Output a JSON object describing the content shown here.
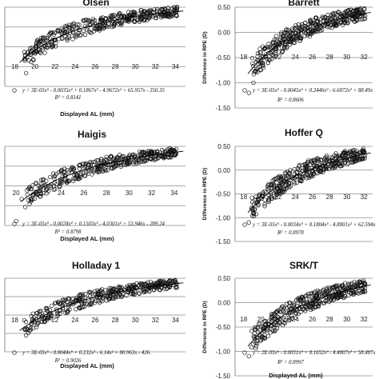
{
  "chart_data": [
    {
      "type": "scatter",
      "title": "Olsen",
      "xlabel": "Displayed AL (mm)",
      "ylabel": "",
      "xticks": [
        "18",
        "20",
        "22",
        "24",
        "26",
        "28",
        "30",
        "32",
        "34"
      ],
      "yticks": [],
      "xlim": [
        18,
        35
      ],
      "ylim": [
        -1.2,
        0.6
      ],
      "legend": "y = 3E-05x⁵ - 0.0035x⁴ + 0.1867x³ - 4.9672x² + 65.957x - 350.35",
      "r2": "R² = 0.8141",
      "trend": {
        "a": 0.5,
        "b": 0.28,
        "c": 3.6
      },
      "points": [
        [
          20,
          -0.9
        ],
        [
          20.5,
          -0.4
        ],
        [
          21,
          -0.2
        ],
        [
          22,
          -0.1
        ],
        [
          23,
          0.05
        ],
        [
          24,
          0.15
        ],
        [
          25,
          0.2
        ],
        [
          26,
          0.28
        ],
        [
          27,
          0.32
        ],
        [
          28,
          0.36
        ],
        [
          29,
          0.4
        ],
        [
          30,
          0.42
        ],
        [
          31,
          0.45
        ],
        [
          32,
          0.48
        ],
        [
          33,
          0.5
        ],
        [
          34,
          0.52
        ]
      ]
    },
    {
      "type": "scatter",
      "title": "Barrett",
      "xlabel": "",
      "ylabel": "Difference in RPE (D)",
      "xticks": [
        "18",
        "20",
        "22",
        "24",
        "26",
        "28",
        "30",
        "32"
      ],
      "yticks": [
        "0.50",
        "0.00",
        "-0.50",
        "-1.00",
        "-1.50"
      ],
      "xlim": [
        18,
        33
      ],
      "ylim": [
        -1.5,
        0.5
      ],
      "legend": "y = 3E-05x⁵ - 0.0045x⁴ + 0.2446x³ - 6.6072x² + 88.49x",
      "r2": "R² = 0.8606",
      "trend": {
        "a": 0.4,
        "b": 0.32,
        "c": 3.2
      },
      "points": [
        [
          19.5,
          -1.2
        ],
        [
          20,
          -1.0
        ],
        [
          20.5,
          -0.7
        ],
        [
          21,
          -0.5
        ],
        [
          22,
          -0.3
        ],
        [
          23,
          -0.1
        ],
        [
          24,
          0.0
        ],
        [
          25,
          0.1
        ],
        [
          26,
          0.15
        ],
        [
          27,
          0.2
        ],
        [
          28,
          0.25
        ],
        [
          29,
          0.28
        ],
        [
          30,
          0.32
        ],
        [
          31,
          0.35
        ],
        [
          32,
          0.38
        ]
      ]
    },
    {
      "type": "scatter",
      "title": "Haigis",
      "xlabel": "Displayed AL (mm)",
      "ylabel": "",
      "xticks": [
        "20",
        "22",
        "24",
        "26",
        "28",
        "30",
        "32",
        "34"
      ],
      "yticks": [],
      "xlim": [
        19,
        35
      ],
      "ylim": [
        -1.2,
        0.6
      ],
      "legend": "y = 3E-05x⁵ - 0.0028x⁴ + 0.1503x³ - 4.0301x² + 53.946x - 289.24",
      "r2": "R² = 0.8798",
      "trend": {
        "a": 0.5,
        "b": 0.3,
        "c": 3.0
      },
      "points": [
        [
          20,
          -1.1
        ],
        [
          20.5,
          -0.6
        ],
        [
          21,
          -0.5
        ],
        [
          22,
          -0.3
        ],
        [
          23,
          -0.1
        ],
        [
          24,
          0.05
        ],
        [
          25,
          0.12
        ],
        [
          26,
          0.2
        ],
        [
          27,
          0.25
        ],
        [
          28,
          0.3
        ],
        [
          29,
          0.35
        ],
        [
          30,
          0.38
        ],
        [
          31,
          0.42
        ],
        [
          32,
          0.45
        ],
        [
          33,
          0.48
        ],
        [
          34,
          0.5
        ]
      ]
    },
    {
      "type": "scatter",
      "title": "Hoffer Q",
      "xlabel": "",
      "ylabel": "Difference in RPE (D)",
      "xticks": [
        "18",
        "20",
        "22",
        "24",
        "26",
        "28",
        "30",
        "32"
      ],
      "yticks": [
        "0.50",
        "0.00",
        "-0.50",
        "-1.00",
        "-1.50"
      ],
      "xlim": [
        18,
        33
      ],
      "ylim": [
        -1.5,
        0.5
      ],
      "legend": "y = 3E-05x⁵ - 0.0034x⁴ + 0.1804x³ - 4.8001x² + 62.594x",
      "r2": "R² = 0.8978",
      "trend": {
        "a": 0.45,
        "b": 0.3,
        "c": 2.8
      },
      "points": [
        [
          19.5,
          -1.1
        ],
        [
          20,
          -0.9
        ],
        [
          20.5,
          -0.6
        ],
        [
          21,
          -0.5
        ],
        [
          22,
          -0.3
        ],
        [
          23,
          -0.15
        ],
        [
          24,
          0.0
        ],
        [
          25,
          0.1
        ],
        [
          26,
          0.2
        ],
        [
          27,
          0.25
        ],
        [
          28,
          0.3
        ],
        [
          29,
          0.35
        ],
        [
          30,
          0.4
        ],
        [
          31,
          0.42
        ],
        [
          32,
          0.45
        ]
      ]
    },
    {
      "type": "scatter",
      "title": "Holladay 1",
      "xlabel": "Displayed AL (mm)",
      "ylabel": "",
      "xticks": [
        "18",
        "20",
        "22",
        "24",
        "26",
        "28",
        "30",
        "32",
        "34"
      ],
      "yticks": [],
      "xlim": [
        18,
        35
      ],
      "ylim": [
        -1.2,
        0.6
      ],
      "legend": "y = 3E-05x⁵ - 0.0044x⁴ + 0.232x³ - 6.14x² + 80.963x - 426.",
      "r2": "R² = 0.9026",
      "trend": {
        "a": 0.5,
        "b": 0.3,
        "c": 3.0
      },
      "points": [
        [
          20,
          -0.8
        ],
        [
          20.5,
          -0.5
        ],
        [
          21,
          -0.4
        ],
        [
          22,
          -0.2
        ],
        [
          23,
          0.0
        ],
        [
          24,
          0.1
        ],
        [
          25,
          0.18
        ],
        [
          26,
          0.25
        ],
        [
          27,
          0.3
        ],
        [
          28,
          0.35
        ],
        [
          29,
          0.38
        ],
        [
          30,
          0.42
        ],
        [
          31,
          0.45
        ],
        [
          32,
          0.48
        ],
        [
          33,
          0.5
        ],
        [
          34,
          0.52
        ]
      ]
    },
    {
      "type": "scatter",
      "title": "SRK/T",
      "xlabel": "Displayed AL (mm)",
      "ylabel": "Difference in RPE (D)",
      "xticks": [
        "18",
        "20",
        "22",
        "24",
        "26",
        "28",
        "30",
        "32"
      ],
      "yticks": [
        "0.50",
        "0.00",
        "-0.50",
        "-1.00",
        "-1.50"
      ],
      "xlim": [
        18,
        33
      ],
      "ylim": [
        -1.5,
        0.5
      ],
      "legend": "y = 2E-05x⁵ - 0.0031x⁴ + 0.1652x³ - 4.4007x² + 58.487x",
      "r2": "R² = 0.8997",
      "trend": {
        "a": 0.45,
        "b": 0.3,
        "c": 2.8
      },
      "points": [
        [
          19.5,
          -1.1
        ],
        [
          20,
          -0.85
        ],
        [
          20.5,
          -0.6
        ],
        [
          21,
          -0.5
        ],
        [
          22,
          -0.3
        ],
        [
          23,
          -0.12
        ],
        [
          24,
          0.0
        ],
        [
          25,
          0.1
        ],
        [
          26,
          0.18
        ],
        [
          27,
          0.25
        ],
        [
          28,
          0.3
        ],
        [
          29,
          0.35
        ],
        [
          30,
          0.4
        ],
        [
          31,
          0.42
        ],
        [
          32,
          0.45
        ]
      ]
    }
  ]
}
